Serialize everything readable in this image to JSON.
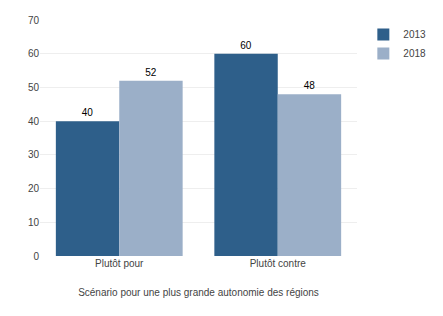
{
  "chart_data": {
    "type": "bar",
    "categories": [
      "Plutôt pour",
      "Plutôt contre"
    ],
    "series": [
      {
        "name": "2013",
        "color": "#2E5F8A",
        "values": [
          40,
          60
        ]
      },
      {
        "name": "2018",
        "color": "#9BAFC8",
        "values": [
          52,
          48
        ]
      }
    ],
    "xlabel": "Scénario pour une plus grande autonomie des régions",
    "ylim": [
      0,
      70
    ],
    "yticks": [
      0,
      10,
      20,
      30,
      40,
      50,
      60,
      70
    ],
    "grid": true,
    "data_labels": true,
    "legend": "upper right"
  }
}
